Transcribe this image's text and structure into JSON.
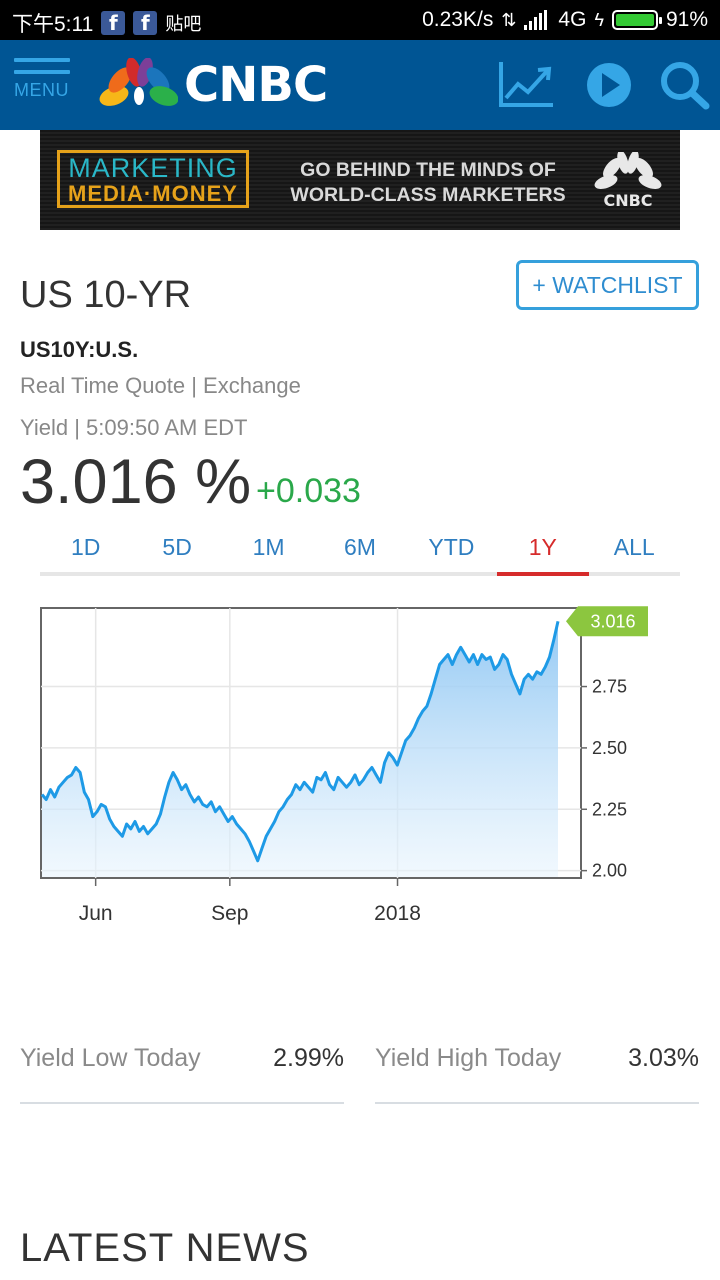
{
  "status_bar": {
    "time": "下午5:11",
    "extra_app": "贴吧",
    "network_speed": "0.23K/s",
    "network_type": "4G",
    "battery": "91%"
  },
  "nav": {
    "menu_label": "MENU",
    "logo_text": "CNBC",
    "icons": [
      "chart-icon",
      "play-icon",
      "search-icon"
    ]
  },
  "ad": {
    "brand_line1": "MARKETING",
    "brand_line2": "MEDIA·MONEY",
    "tagline_line1": "GO BEHIND THE MINDS OF",
    "tagline_line2": "WORLD-CLASS MARKETERS",
    "logo_text": "CNBC"
  },
  "quote": {
    "title": "US 10-YR",
    "watchlist_label": "+ WATCHLIST",
    "symbol": "US10Y:U.S.",
    "quote_type": "Real Time Quote | Exchange",
    "timestamp": "Yield | 5:09:50 AM EDT",
    "price": "3.016 %",
    "change": "+0.033"
  },
  "range_tabs": [
    {
      "label": "1D",
      "active": false
    },
    {
      "label": "5D",
      "active": false
    },
    {
      "label": "1M",
      "active": false
    },
    {
      "label": "6M",
      "active": false
    },
    {
      "label": "YTD",
      "active": false
    },
    {
      "label": "1Y",
      "active": true
    },
    {
      "label": "ALL",
      "active": false
    }
  ],
  "chart_data": {
    "type": "area",
    "title": "",
    "xlabel": "",
    "ylabel": "",
    "x_ticks": [
      "Jun",
      "Sep",
      "2018"
    ],
    "y_ticks": [
      "2.00",
      "2.25",
      "2.50",
      "2.75"
    ],
    "ylim": [
      1.97,
      3.07
    ],
    "last_value_label": "3.016",
    "line_color": "#1e9ae6",
    "fill_color": "#9fcff5",
    "grid": true,
    "series": [
      {
        "values": [
          2.31,
          2.29,
          2.33,
          2.3,
          2.34,
          2.36,
          2.38,
          2.39,
          2.42,
          2.4,
          2.32,
          2.29,
          2.22,
          2.24,
          2.27,
          2.26,
          2.21,
          2.18,
          2.16,
          2.14,
          2.19,
          2.17,
          2.2,
          2.16,
          2.18,
          2.15,
          2.17,
          2.19,
          2.23,
          2.3,
          2.36,
          2.4,
          2.37,
          2.33,
          2.35,
          2.31,
          2.28,
          2.3,
          2.27,
          2.26,
          2.28,
          2.24,
          2.26,
          2.23,
          2.2,
          2.22,
          2.19,
          2.17,
          2.15,
          2.12,
          2.08,
          2.04,
          2.09,
          2.14,
          2.17,
          2.2,
          2.24,
          2.26,
          2.29,
          2.31,
          2.35,
          2.33,
          2.36,
          2.34,
          2.32,
          2.38,
          2.37,
          2.4,
          2.35,
          2.33,
          2.38,
          2.36,
          2.34,
          2.36,
          2.39,
          2.35,
          2.37,
          2.4,
          2.42,
          2.39,
          2.36,
          2.44,
          2.48,
          2.46,
          2.43,
          2.48,
          2.53,
          2.55,
          2.58,
          2.62,
          2.65,
          2.67,
          2.72,
          2.78,
          2.84,
          2.86,
          2.88,
          2.84,
          2.88,
          2.91,
          2.88,
          2.85,
          2.88,
          2.84,
          2.88,
          2.86,
          2.87,
          2.82,
          2.84,
          2.88,
          2.86,
          2.8,
          2.76,
          2.72,
          2.78,
          2.8,
          2.78,
          2.81,
          2.8,
          2.83,
          2.87,
          2.94,
          3.016
        ]
      }
    ]
  },
  "stats": [
    {
      "label": "Yield Low Today",
      "value": "2.99%"
    },
    {
      "label": "Yield High Today",
      "value": "3.03%"
    }
  ],
  "latest_news_heading": "LATEST NEWS"
}
